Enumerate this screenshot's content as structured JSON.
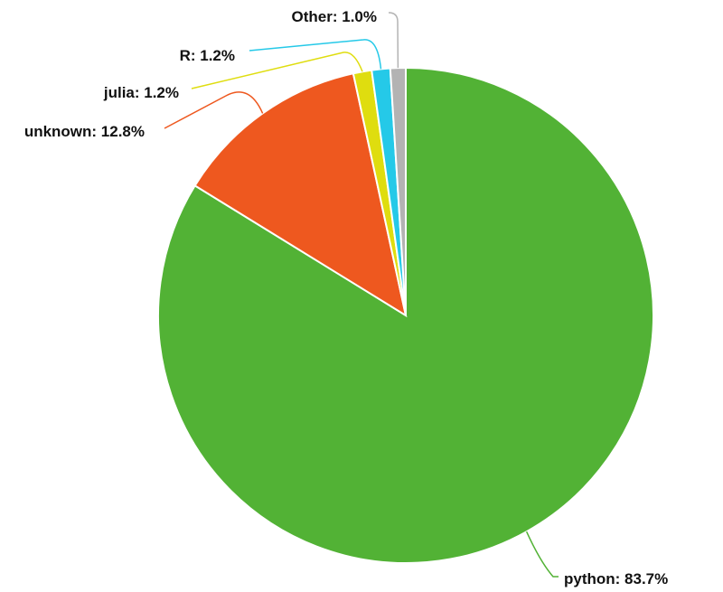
{
  "chart_data": {
    "type": "pie",
    "title": "",
    "slices": [
      {
        "label": "python",
        "value": 83.7,
        "display": "python: 83.7%",
        "color": "#52b235"
      },
      {
        "label": "unknown",
        "value": 12.8,
        "display": "unknown: 12.8%",
        "color": "#ee581f"
      },
      {
        "label": "julia",
        "value": 1.2,
        "display": "julia: 1.2%",
        "color": "#dfdd0f"
      },
      {
        "label": "R",
        "value": 1.2,
        "display": "R: 1.2%",
        "color": "#25c9e8"
      },
      {
        "label": "Other",
        "value": 1.0,
        "display": "Other: 1.0%",
        "color": "#b3b3b3"
      }
    ],
    "start_angle": "12 o'clock",
    "direction": "clockwise",
    "legend": "none (labels beside slices)"
  }
}
